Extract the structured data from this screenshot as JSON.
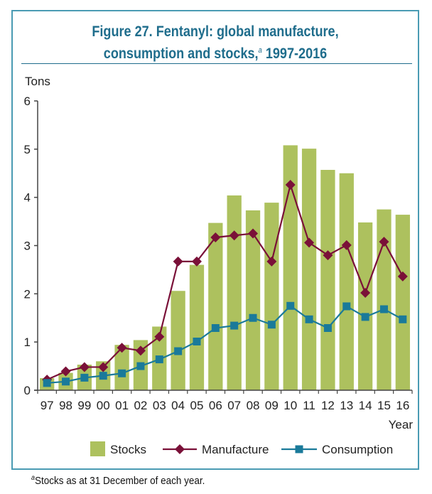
{
  "title": {
    "line1": "Figure 27.   Fentanyl: global manufacture,",
    "line2_pre": "consumption and stocks,",
    "line2_sup": "a",
    "line2_post": " 1997-2016"
  },
  "footnote": {
    "marker": "a",
    "text": "Stocks as at 31 December of each year."
  },
  "colors": {
    "title": "#1f6d8c",
    "frame": "#4a9bb3",
    "stocks": "#adc15e",
    "manufacture": "#7a1038",
    "consumption": "#1a7a9a"
  },
  "chart_data": {
    "type": "bar",
    "title": "Figure 27. Fentanyl: global manufacture, consumption and stocks, 1997-2016",
    "xlabel": "Year",
    "ylabel": "Tons",
    "ylim": [
      0,
      6
    ],
    "yticks": [
      0,
      1,
      2,
      3,
      4,
      5,
      6
    ],
    "grid": false,
    "legend_position": "bottom",
    "categories": [
      "97",
      "98",
      "99",
      "00",
      "01",
      "02",
      "03",
      "04",
      "05",
      "06",
      "07",
      "08",
      "09",
      "10",
      "11",
      "12",
      "13",
      "14",
      "15",
      "16"
    ],
    "series": [
      {
        "name": "Stocks",
        "type": "bar",
        "values": [
          0.25,
          0.36,
          0.53,
          0.6,
          0.94,
          1.04,
          1.32,
          2.06,
          2.6,
          3.47,
          4.04,
          3.73,
          3.89,
          5.08,
          5.01,
          4.57,
          4.5,
          3.48,
          3.75,
          3.64
        ]
      },
      {
        "name": "Manufacture",
        "type": "line",
        "marker": "diamond",
        "values": [
          0.22,
          0.39,
          0.48,
          0.48,
          0.88,
          0.82,
          1.11,
          2.67,
          2.67,
          3.17,
          3.21,
          3.25,
          2.67,
          4.26,
          3.06,
          2.8,
          3.01,
          2.02,
          3.08,
          2.36
        ]
      },
      {
        "name": "Consumption",
        "type": "line",
        "marker": "square",
        "values": [
          0.15,
          0.18,
          0.26,
          0.3,
          0.35,
          0.5,
          0.64,
          0.81,
          1.01,
          1.29,
          1.34,
          1.5,
          1.36,
          1.75,
          1.47,
          1.29,
          1.74,
          1.52,
          1.68,
          1.47
        ]
      }
    ]
  }
}
